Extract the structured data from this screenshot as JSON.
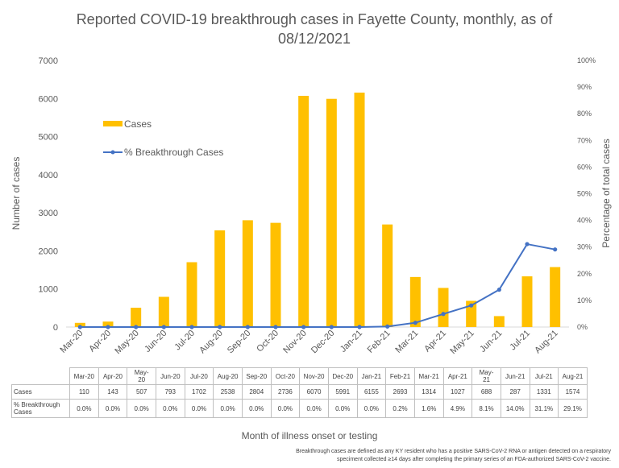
{
  "chart_data": {
    "type": "bar",
    "title": "Reported COVID-19 breakthrough cases in Fayette County, monthly, as of 08/12/2021",
    "xlabel": "Month of illness onset or testing",
    "ylabel": "Number of cases",
    "ylabel_right": "Percentage of total cases",
    "categories": [
      "Mar-20",
      "Apr-20",
      "May-20",
      "Jun-20",
      "Jul-20",
      "Aug-20",
      "Sep-20",
      "Oct-20",
      "Nov-20",
      "Dec-20",
      "Jan-21",
      "Feb-21",
      "Mar-21",
      "Apr-21",
      "May-21",
      "Jun-21",
      "Jul-21",
      "Aug-21"
    ],
    "series": [
      {
        "name": "Cases",
        "type": "bar",
        "axis": "left",
        "color": "#ffc000",
        "values": [
          110,
          143,
          507,
          793,
          1702,
          2538,
          2804,
          2736,
          6070,
          5991,
          6155,
          2693,
          1314,
          1027,
          688,
          287,
          1331,
          1574
        ]
      },
      {
        "name": "% Breakthrough Cases",
        "type": "line",
        "axis": "right",
        "color": "#4472c4",
        "values": [
          0.0,
          0.0,
          0.0,
          0.0,
          0.0,
          0.0,
          0.0,
          0.0,
          0.0,
          0.0,
          0.0,
          0.2,
          1.6,
          4.9,
          8.1,
          14.0,
          31.1,
          29.1
        ]
      }
    ],
    "ylim": [
      0,
      7000
    ],
    "yticks": [
      "0",
      "1000",
      "2000",
      "3000",
      "4000",
      "5000",
      "6000",
      "7000"
    ],
    "ylim_right": [
      0,
      100
    ],
    "yticks_right": [
      "0%",
      "10%",
      "20%",
      "30%",
      "40%",
      "50%",
      "60%",
      "70%",
      "80%",
      "90%",
      "100%"
    ],
    "grid": false,
    "legend_position": "upper-left-inside",
    "table": {
      "header_labels": [
        "Mar-20",
        "Apr-20",
        "May-\n20",
        "Jun-20",
        "Jul-20",
        "Aug-20",
        "Sep-20",
        "Oct-20",
        "Nov-20",
        "Dec-20",
        "Jan-21",
        "Feb-21",
        "Mar-21",
        "Apr-21",
        "May-\n21",
        "Jun-21",
        "Jul-21",
        "Aug-21"
      ],
      "rows": [
        {
          "label": "Cases",
          "cells": [
            "110",
            "143",
            "507",
            "793",
            "1702",
            "2538",
            "2804",
            "2736",
            "6070",
            "5991",
            "6155",
            "2693",
            "1314",
            "1027",
            "688",
            "287",
            "1331",
            "1574"
          ]
        },
        {
          "label": "% Breakthrough\nCases",
          "cells": [
            "0.0%",
            "0.0%",
            "0.0%",
            "0.0%",
            "0.0%",
            "0.0%",
            "0.0%",
            "0.0%",
            "0.0%",
            "0.0%",
            "0.0%",
            "0.2%",
            "1.6%",
            "4.9%",
            "8.1%",
            "14.0%",
            "31.1%",
            "29.1%"
          ]
        }
      ]
    }
  },
  "footnote_line1": "Breakthrough cases are defined as any KY resident who has a positive SARS-CoV-2 RNA or antigen detected on a respiratory",
  "footnote_line2": "speciment collected ≥14 days after completing the primary series of an FDA-authorized SARS-CoV-2 vaccine."
}
